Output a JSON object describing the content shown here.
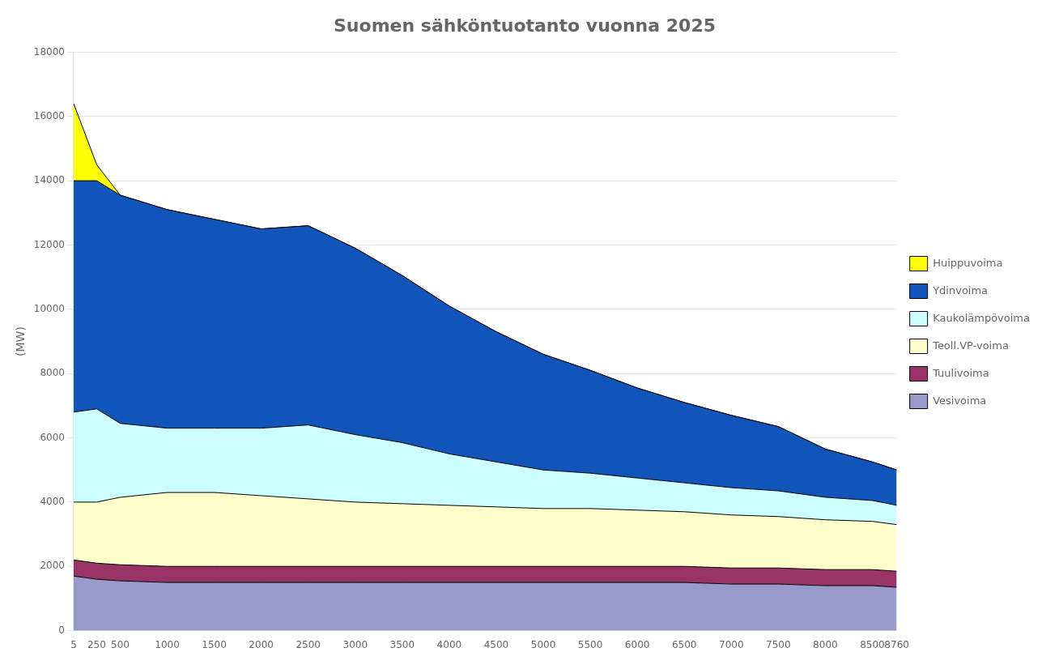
{
  "chart_data": {
    "type": "area",
    "title": "Suomen sähköntuotanto vuonna 2025",
    "y_label": "(MW)",
    "x": [
      5,
      250,
      500,
      1000,
      1500,
      2000,
      2500,
      3000,
      3500,
      4000,
      4500,
      5000,
      5500,
      6000,
      6500,
      7000,
      7500,
      8000,
      8500,
      8760
    ],
    "xlim": [
      5,
      8760
    ],
    "xticks": [
      5,
      250,
      500,
      1000,
      1500,
      2000,
      2500,
      3000,
      3500,
      4000,
      4500,
      5000,
      5500,
      6000,
      6500,
      7000,
      7500,
      8000,
      8500,
      8760
    ],
    "ylim": [
      0,
      18000
    ],
    "yticks": [
      0,
      2000,
      4000,
      6000,
      8000,
      10000,
      12000,
      14000,
      16000,
      18000
    ],
    "stacked": true,
    "grid": "y",
    "legend": "right",
    "series": [
      {
        "name": "Vesivoima",
        "color": "#9999cc",
        "values": [
          1700,
          1600,
          1550,
          1500,
          1500,
          1500,
          1500,
          1500,
          1500,
          1500,
          1500,
          1500,
          1500,
          1500,
          1500,
          1450,
          1450,
          1400,
          1400,
          1350
        ]
      },
      {
        "name": "Tuulivoima",
        "color": "#993366",
        "values": [
          500,
          500,
          500,
          500,
          500,
          500,
          500,
          500,
          500,
          500,
          500,
          500,
          500,
          500,
          500,
          500,
          500,
          500,
          500,
          500
        ]
      },
      {
        "name": "Teoll.VP-voima",
        "color": "#ffffcc",
        "values": [
          1800,
          1900,
          2100,
          2300,
          2300,
          2200,
          2100,
          2000,
          1950,
          1900,
          1850,
          1800,
          1800,
          1750,
          1700,
          1650,
          1600,
          1550,
          1500,
          1450
        ]
      },
      {
        "name": "Kaukolämpövoima",
        "color": "#ccffff",
        "values": [
          2800,
          2900,
          2300,
          2000,
          2000,
          2100,
          2300,
          2100,
          1900,
          1600,
          1400,
          1200,
          1100,
          1000,
          900,
          850,
          800,
          700,
          650,
          600
        ]
      },
      {
        "name": "Ydinvoima",
        "color": "#1155bb",
        "values": [
          7200,
          7100,
          7100,
          6800,
          6500,
          6200,
          6200,
          5800,
          5200,
          4600,
          4050,
          3600,
          3200,
          2800,
          2500,
          2250,
          2000,
          1500,
          1200,
          1100
        ]
      },
      {
        "name": "Huippuvoima",
        "color": "#ffff00",
        "values": [
          2400,
          500,
          0,
          0,
          0,
          0,
          0,
          0,
          0,
          0,
          0,
          0,
          0,
          0,
          0,
          0,
          0,
          0,
          0,
          0
        ]
      }
    ]
  }
}
